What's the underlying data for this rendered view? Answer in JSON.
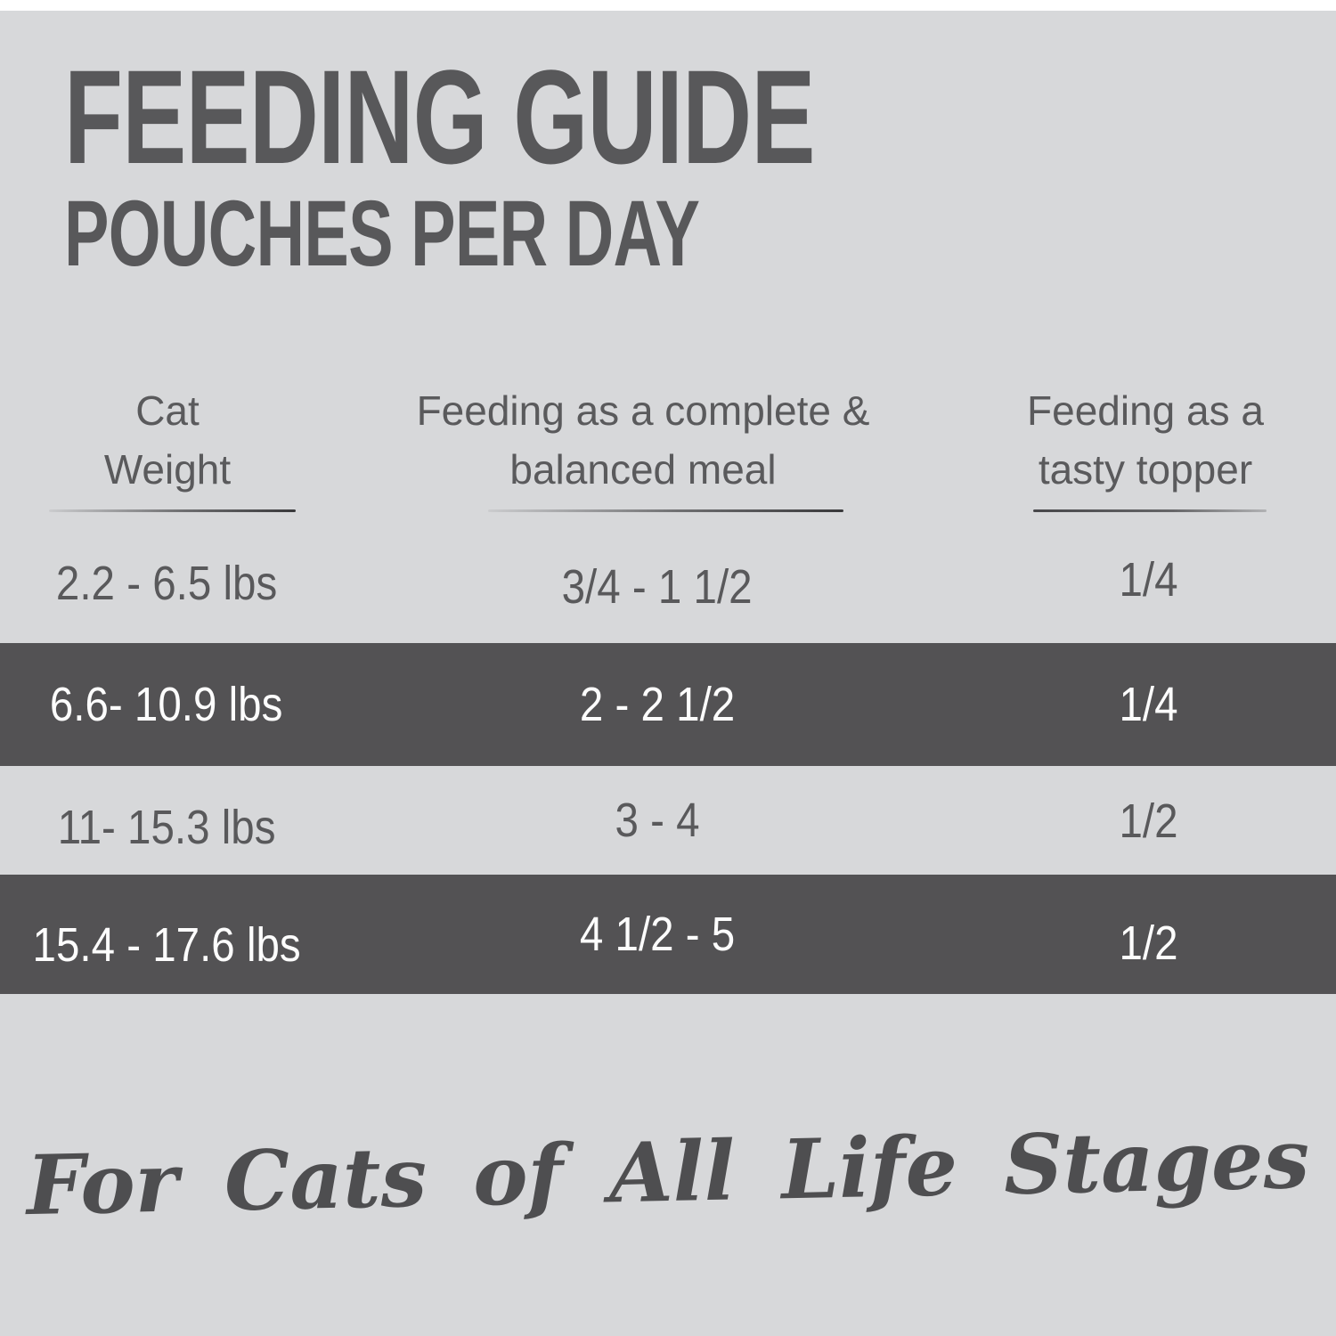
{
  "page": {
    "background_color": "#d7d8da",
    "band_color": "#535254",
    "text_color": "#58585a",
    "highlight_text_color": "#fdfdfd"
  },
  "title": "FEEDING GUIDE",
  "subtitle": "POUCHES PER DAY",
  "table": {
    "columns": [
      {
        "line1": "Cat",
        "line2": "Weight"
      },
      {
        "line1": "Feeding as a complete &",
        "line2": "balanced meal"
      },
      {
        "line1": "Feeding as a",
        "line2": "tasty topper"
      }
    ],
    "rows": [
      {
        "cells": [
          "2.2 - 6.5 lbs",
          "3/4 - 1 1/2",
          "1/4"
        ],
        "highlight": false
      },
      {
        "cells": [
          "6.6- 10.9 lbs",
          "2 - 2 1/2",
          "1/4"
        ],
        "highlight": true
      },
      {
        "cells": [
          "11- 15.3 lbs",
          "3 - 4",
          "1/2"
        ],
        "highlight": false
      },
      {
        "cells": [
          "15.4 - 17.6 lbs",
          "4 1/2 - 5",
          "1/2"
        ],
        "highlight": true
      }
    ]
  },
  "footer": {
    "tagline": "For Cats of All Life Stages"
  },
  "chart_data": {
    "type": "table",
    "title": "FEEDING GUIDE",
    "subtitle": "POUCHES PER DAY",
    "columns": [
      "Cat Weight",
      "Feeding as a complete & balanced meal",
      "Feeding as a tasty topper"
    ],
    "rows": [
      [
        "2.2 - 6.5 lbs",
        "3/4 - 1 1/2",
        "1/4"
      ],
      [
        "6.6- 10.9 lbs",
        "2 - 2 1/2",
        "1/4"
      ],
      [
        "11- 15.3 lbs",
        "3 - 4",
        "1/2"
      ],
      [
        "15.4 - 17.6 lbs",
        "4 1/2 - 5",
        "1/2"
      ]
    ],
    "highlighted_rows": [
      1,
      3
    ],
    "footnote": "For Cats of All Life Stages"
  }
}
